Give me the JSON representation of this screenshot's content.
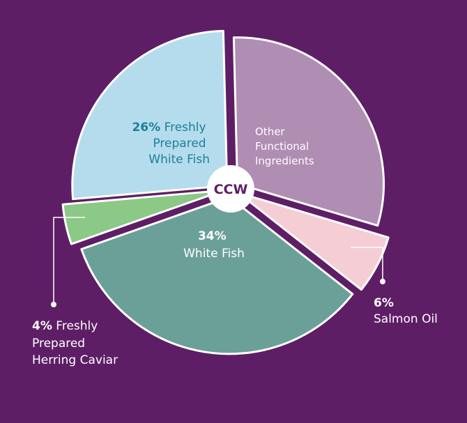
{
  "chart_data": {
    "type": "pie",
    "center_label": "CCW",
    "slices": [
      {
        "pct": "26%",
        "text": "Freshly Prepared White Fish",
        "value": 26,
        "color": "#b5dcec"
      },
      {
        "pct": "",
        "text": "Other Functional Ingredients",
        "value": 30,
        "color": "#b08db3"
      },
      {
        "pct": "6%",
        "text": "Salmon Oil",
        "value": 6,
        "color": "#f5cdd5"
      },
      {
        "pct": "34%",
        "text": "White Fish",
        "value": 34,
        "color": "#6ba099"
      },
      {
        "pct": "4%",
        "text": "Freshly Prepared Herring Caviar",
        "value": 4,
        "color": "#8cc886"
      }
    ]
  }
}
